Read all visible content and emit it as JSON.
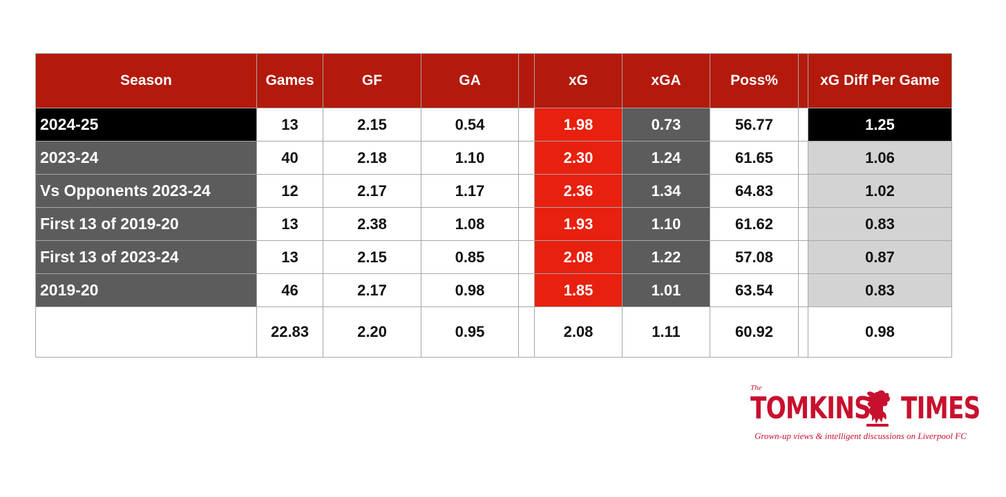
{
  "chart_data": {
    "type": "table",
    "columns": [
      "Season",
      "Games",
      "GF",
      "GA",
      "xG",
      "xGA",
      "Poss%",
      "xG Diff Per Game"
    ],
    "rows": [
      {
        "season": "2024-25",
        "games": "13",
        "gf": "2.15",
        "ga": "0.54",
        "xg": "1.98",
        "xga": "0.73",
        "poss": "56.77",
        "xg_diff": "1.25"
      },
      {
        "season": "2023-24",
        "games": "40",
        "gf": "2.18",
        "ga": "1.10",
        "xg": "2.30",
        "xga": "1.24",
        "poss": "61.65",
        "xg_diff": "1.06"
      },
      {
        "season": "Vs Opponents 2023-24",
        "games": "12",
        "gf": "2.17",
        "ga": "1.17",
        "xg": "2.36",
        "xga": "1.34",
        "poss": "64.83",
        "xg_diff": "1.02"
      },
      {
        "season": "First 13 of 2019-20",
        "games": "13",
        "gf": "2.38",
        "ga": "1.08",
        "xg": "1.93",
        "xga": "1.10",
        "poss": "61.62",
        "xg_diff": "0.83"
      },
      {
        "season": "First 13 of 2023-24",
        "games": "13",
        "gf": "2.15",
        "ga": "0.85",
        "xg": "2.08",
        "xga": "1.22",
        "poss": "57.08",
        "xg_diff": "0.87"
      },
      {
        "season": "2019-20",
        "games": "46",
        "gf": "2.17",
        "ga": "0.98",
        "xg": "1.85",
        "xga": "1.01",
        "poss": "63.54",
        "xg_diff": "0.83"
      }
    ],
    "average_row": {
      "season": "",
      "games": "22.83",
      "gf": "2.20",
      "ga": "0.95",
      "xg": "2.08",
      "xga": "1.11",
      "poss": "60.92",
      "xg_diff": "0.98"
    }
  },
  "colors": {
    "header_red": "#b31a0c",
    "xg_red": "#e8200e",
    "dark_grey": "#5c5c5c",
    "light_grey": "#d3d3d3",
    "highlight_black": "#000000",
    "brand_red": "#c8102e"
  },
  "logo": {
    "the": "The",
    "left": "TOMKINS",
    "right": "TIMES",
    "icon": "liverbird-icon",
    "tagline": "Grown-up views & intelligent discussions on Liverpool FC"
  }
}
